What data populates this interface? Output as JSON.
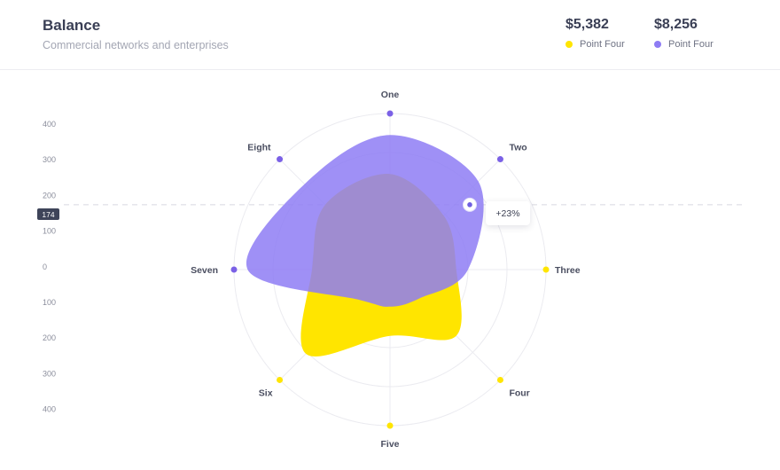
{
  "header": {
    "title": "Balance",
    "subtitle": "Commercial networks and enterprises",
    "stats": [
      {
        "value": "$5,382",
        "legend": "Point Four",
        "color": "#FFE500"
      },
      {
        "value": "$8,256",
        "legend": "Point Four",
        "color": "#8E7CF4"
      }
    ]
  },
  "chart_data": {
    "type": "radar",
    "axes": [
      "One",
      "Two",
      "Three",
      "Four",
      "Five",
      "Six",
      "Seven",
      "Eight"
    ],
    "y_ticks": [
      "400",
      "300",
      "200",
      "100",
      "0",
      "100",
      "200",
      "300",
      "400"
    ],
    "series": [
      {
        "name": "Point Four",
        "color": "#FFE500",
        "axis_dot_color": "#FFE500",
        "values": [
          245,
          195,
          170,
          240,
          170,
          305,
          200,
          235
        ]
      },
      {
        "name": "Point Four",
        "color": "#8E7CF4",
        "axis_dot_color": "#7B61E6",
        "values": [
          345,
          320,
          200,
          105,
          95,
          110,
          365,
          310
        ]
      }
    ],
    "axis_dot_series": [
      1,
      1,
      0,
      0,
      0,
      0,
      1,
      1
    ],
    "highlight": {
      "y_value": "174",
      "label": "+23%"
    },
    "grid": true
  }
}
